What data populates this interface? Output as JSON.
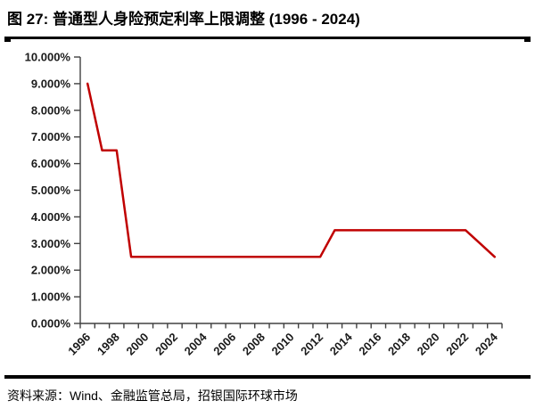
{
  "header": {
    "title": "图 27: 普通型人身险预定利率上限调整 (1996 - 2024)"
  },
  "footer": {
    "source": "资料来源：Wind、金融监管总局，招银国际环球市场"
  },
  "chart_data": {
    "type": "line",
    "title": "普通型人身险预定利率上限调整 (1996 - 2024)",
    "xlabel": "",
    "ylabel": "",
    "x": [
      1996,
      1997,
      1998,
      1999,
      2000,
      2001,
      2002,
      2003,
      2004,
      2005,
      2006,
      2007,
      2008,
      2009,
      2010,
      2011,
      2012,
      2013,
      2014,
      2015,
      2016,
      2017,
      2018,
      2019,
      2020,
      2021,
      2022,
      2023,
      2024
    ],
    "series": [
      {
        "name": "普通型人身险预定利率上限",
        "color": "#C00000",
        "unit": "%",
        "values": [
          9.0,
          6.5,
          6.5,
          2.5,
          2.5,
          2.5,
          2.5,
          2.5,
          2.5,
          2.5,
          2.5,
          2.5,
          2.5,
          2.5,
          2.5,
          2.5,
          2.5,
          3.5,
          3.5,
          3.5,
          3.5,
          3.5,
          3.5,
          3.5,
          3.5,
          3.5,
          3.5,
          3.0,
          2.5
        ]
      }
    ],
    "ylim": [
      0,
      10
    ],
    "ytick_step": 1,
    "ytick_labels": [
      "0.000%",
      "1.000%",
      "2.000%",
      "3.000%",
      "4.000%",
      "5.000%",
      "6.000%",
      "7.000%",
      "8.000%",
      "9.000%",
      "10.000%"
    ],
    "xtick_labels": [
      "1996",
      "1998",
      "2000",
      "2002",
      "2004",
      "2006",
      "2008",
      "2010",
      "2012",
      "2014",
      "2016",
      "2018",
      "2020",
      "2022",
      "2024"
    ],
    "grid": false,
    "legend": false,
    "axis_color": "#404040",
    "tick_label_color": "#1a1a1a"
  }
}
